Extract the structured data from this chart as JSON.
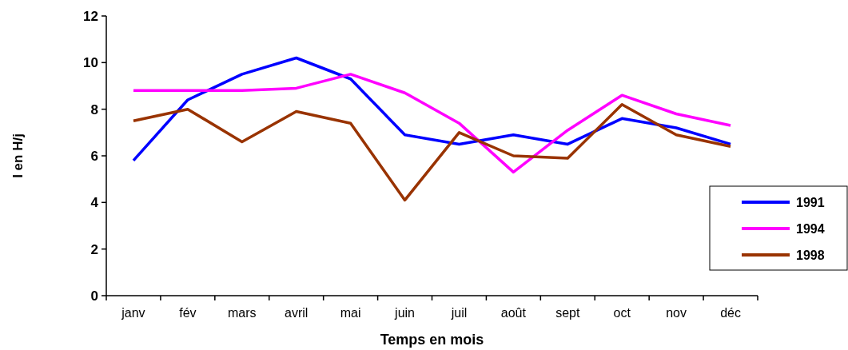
{
  "chart_data": {
    "type": "line",
    "xlabel": "Temps en mois",
    "ylabel": "I en H/j",
    "categories": [
      "janv",
      "fév",
      "mars",
      "avril",
      "mai",
      "juin",
      "juil",
      "août",
      "sept",
      "oct",
      "nov",
      "déc"
    ],
    "series": [
      {
        "name": "1991",
        "color": "#0000ff",
        "values": [
          5.8,
          8.4,
          9.5,
          10.2,
          9.3,
          6.9,
          6.5,
          6.9,
          6.5,
          7.6,
          7.2,
          6.5
        ]
      },
      {
        "name": "1994",
        "color": "#ff00ff",
        "values": [
          8.8,
          8.8,
          8.8,
          8.9,
          9.5,
          8.7,
          7.4,
          5.3,
          7.1,
          8.6,
          7.8,
          7.3
        ]
      },
      {
        "name": "1998",
        "color": "#993300",
        "values": [
          7.5,
          8.0,
          6.6,
          7.9,
          7.4,
          4.1,
          7.0,
          6.0,
          5.9,
          8.2,
          6.9,
          6.4
        ]
      }
    ],
    "ylim": [
      0,
      12
    ],
    "yticks": [
      0,
      2,
      4,
      6,
      8,
      10,
      12
    ],
    "grid": false,
    "legend": "right",
    "marker": "none",
    "line_style": "solid"
  }
}
